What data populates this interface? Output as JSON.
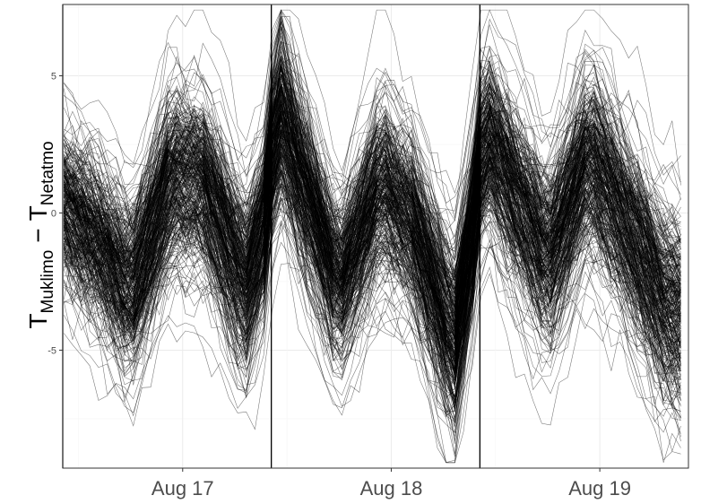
{
  "chart_data": {
    "type": "line",
    "title": "",
    "xlabel": "",
    "ylabel": {
      "main": "T",
      "sub1": "Muklimo",
      "minus": "−",
      "main2": "T",
      "sub2": "Netatmo"
    },
    "x_tick_labels": [
      "Aug 17",
      "Aug 18",
      "Aug 19"
    ],
    "x_tick_values": [
      1.0,
      2.0,
      3.0
    ],
    "y_tick_labels": [
      "5",
      "0",
      "-5"
    ],
    "y_tick_values": [
      5,
      0,
      -5
    ],
    "xlim": [
      0.425,
      3.425
    ],
    "ylim": [
      -9.3,
      7.6
    ],
    "vertical_lines": [
      0.425,
      1.425,
      2.425
    ],
    "grid": true,
    "legend": "none",
    "series_count": 350,
    "series_description": "Many (~350) station series of temperature difference; each day shows a dip to about -4 early, a rise to about +2 around midday, and a drop to about -4 to -7 late in the day, with jumps at day boundaries.",
    "envelope": {
      "x": [
        0.43,
        0.6,
        0.75,
        0.95,
        1.1,
        1.3,
        1.42,
        1.44,
        1.6,
        1.75,
        1.95,
        2.1,
        2.3,
        2.42,
        2.44,
        2.6,
        2.75,
        2.95,
        3.1,
        3.3,
        3.41
      ],
      "median": [
        0.3,
        -1.0,
        -2.8,
        1.3,
        1.0,
        -2.5,
        0.3,
        4.0,
        0.5,
        -2.6,
        1.0,
        -0.4,
        -4.5,
        0.8,
        3.0,
        0.5,
        -1.6,
        2.0,
        0.0,
        -3.0,
        -3.5
      ],
      "spread": [
        1.6,
        1.6,
        1.7,
        1.9,
        1.9,
        1.8,
        1.6,
        1.7,
        1.7,
        1.6,
        1.8,
        1.7,
        1.8,
        1.8,
        1.7,
        1.8,
        1.8,
        1.9,
        1.9,
        1.9,
        2.0
      ]
    },
    "colors": {
      "line": "#000000",
      "panel_border": "#333333",
      "grid_major": "#ebebeb",
      "grid_minor": "#f5f5f5",
      "tick_text": "#4d4d4d"
    }
  }
}
